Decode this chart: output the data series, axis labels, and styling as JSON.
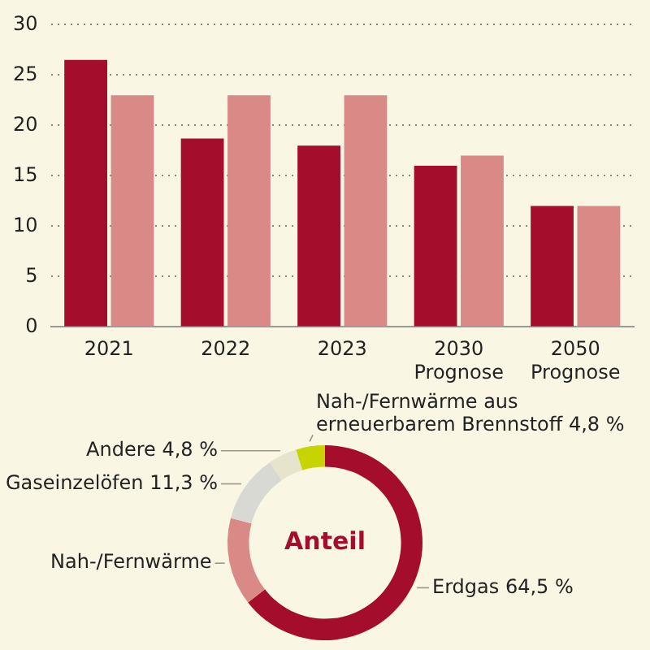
{
  "chart_data": [
    {
      "type": "bar",
      "categories": [
        "2021",
        "2022",
        "2023",
        "2030\nPrognose",
        "2050\nPrognose"
      ],
      "series": [
        {
          "color": "#a50d2c",
          "values": [
            26.5,
            18.7,
            18,
            16,
            12
          ]
        },
        {
          "color": "#d98a86",
          "values": [
            23,
            23,
            23,
            17,
            12
          ]
        }
      ],
      "ylim": [
        0,
        30
      ],
      "yticks": [
        0,
        5,
        10,
        15,
        20,
        25,
        30
      ],
      "grid": "y",
      "legend": false
    },
    {
      "type": "donut",
      "title": "Anteil",
      "categories": [
        "Erdgas",
        "Nah-/Fernwärme",
        "Gaseinzelöfen",
        "Andere",
        "Nah-/Fernwärme aus\nerneuerbarem Brennstoff"
      ],
      "values": [
        64.5,
        14.6,
        11.3,
        4.8,
        4.8
      ],
      "colors": [
        "#a50d2c",
        "#d98a86",
        "#d9d9d4",
        "#e6e4cc",
        "#c8d400"
      ],
      "value_labels": [
        "64,5 %",
        null,
        "11,3 %",
        "4,8 %",
        "4,8 %"
      ],
      "legend": false
    }
  ]
}
